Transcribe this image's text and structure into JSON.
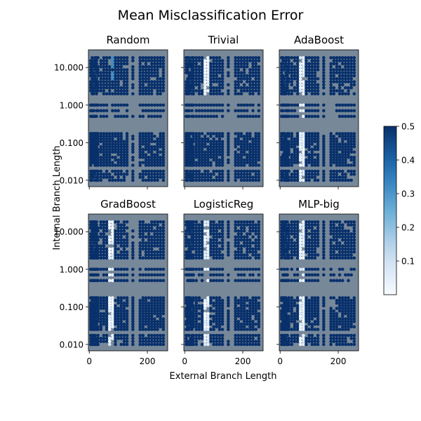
{
  "figure": {
    "title": "Mean Misclassification Error",
    "xlabel": "External Branch Length",
    "ylabel": "Internal Branch Length",
    "panel_background": "#778899",
    "colormap": "Blues"
  },
  "chart_data": {
    "type": "scatter",
    "title": "Mean Misclassification Error",
    "xlabel": "External Branch Length",
    "ylabel": "Internal Branch Length",
    "xlim": [
      -3,
      270
    ],
    "ylim_log10": [
      -2.17,
      1.47
    ],
    "yscale": "log",
    "x_ticks": [
      0,
      200
    ],
    "y_ticks": [
      "10.000",
      "1.000",
      "0.100",
      "0.010"
    ],
    "colorbar": {
      "range": [
        0,
        0.5
      ],
      "ticks": [
        "0.1",
        "0.2",
        "0.3",
        "0.4",
        "0.5"
      ]
    },
    "panels": [
      {
        "name": "Random",
        "hot_columns": [],
        "highlight_column": 80,
        "highlight_value": 0.32
      },
      {
        "name": "Trivial",
        "hot_columns": [
          70,
          80
        ],
        "hot_range": "upper"
      },
      {
        "name": "AdaBoost",
        "hot_columns": [
          70,
          80
        ],
        "hot_range": "both"
      },
      {
        "name": "GradBoost",
        "hot_columns": [
          70,
          80
        ],
        "hot_range": "both"
      },
      {
        "name": "LogisticReg",
        "hot_columns": [
          70,
          80
        ],
        "hot_range": "both"
      },
      {
        "name": "MLP-big",
        "hot_columns": [
          70,
          80
        ],
        "hot_range": "both"
      }
    ]
  }
}
